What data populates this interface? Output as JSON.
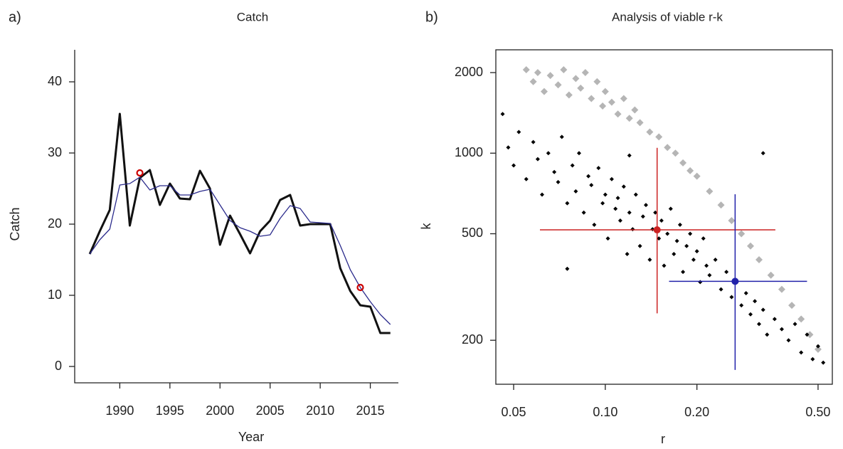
{
  "chart_data": [
    {
      "type": "line",
      "panel": "a)",
      "title": "Catch",
      "xlabel": "Year",
      "ylabel": "Catch",
      "xlim": [
        1985.5,
        2017.8
      ],
      "ylim": [
        -2.3,
        44.5
      ],
      "xticks": [
        1990,
        1995,
        2000,
        2005,
        2010,
        2015
      ],
      "yticks": [
        0,
        10,
        20,
        30,
        40
      ],
      "grid": false,
      "x": [
        1987,
        1988,
        1989,
        1990,
        1991,
        1992,
        1993,
        1994,
        1995,
        1996,
        1997,
        1998,
        1999,
        2000,
        2001,
        2002,
        2003,
        2004,
        2005,
        2006,
        2007,
        2008,
        2009,
        2010,
        2011,
        2012,
        2013,
        2014,
        2015,
        2016,
        2017
      ],
      "series": [
        {
          "color": "#111111",
          "width": 3,
          "values": [
            15.8,
            19,
            22,
            35.5,
            19.8,
            26.5,
            27.6,
            22.7,
            25.7,
            23.6,
            23.5,
            27.5,
            25,
            17.1,
            21.2,
            18.6,
            15.9,
            19,
            20.5,
            23.4,
            24.1,
            19.8,
            20,
            20,
            20,
            13.8,
            10.6,
            8.6,
            8.4,
            4.7,
            4.7
          ]
        },
        {
          "color": "#2b2b8c",
          "width": 1.3,
          "values": [
            15.8,
            17.8,
            19.3,
            25.5,
            25.7,
            26.6,
            24.8,
            25.4,
            25.4,
            24.1,
            24.1,
            24.6,
            24.9,
            22.7,
            20.5,
            19.5,
            19,
            18.3,
            18.5,
            20.8,
            22.6,
            22.2,
            20.3,
            20.2,
            20.1,
            17,
            13.6,
            11.1,
            9.1,
            7.3,
            5.9
          ]
        }
      ],
      "markers": {
        "color": "#cc0000",
        "x": [
          1992,
          2014
        ],
        "values": [
          27.2,
          11.1
        ]
      }
    },
    {
      "type": "scatter",
      "panel": "b)",
      "title": "Analysis of viable r-k",
      "xlabel": "r",
      "ylabel": "k",
      "xscale": "log",
      "yscale": "log",
      "xlim": [
        0.0437,
        0.557
      ],
      "ylim": [
        137,
        2433
      ],
      "xticks": [
        0.05,
        {
          "value": 0.1,
          "label": "0.10"
        },
        {
          "value": 0.2,
          "label": "0.20"
        },
        {
          "value": 0.5,
          "label": "0.50"
        }
      ],
      "yticks": [
        200,
        500,
        1000,
        2000
      ],
      "grid": false,
      "series": [
        {
          "color": "#b5b5b5",
          "size": 5,
          "x": [
            0.055,
            0.058,
            0.06,
            0.063,
            0.066,
            0.07,
            0.073,
            0.076,
            0.08,
            0.083,
            0.086,
            0.09,
            0.094,
            0.098,
            0.1,
            0.105,
            0.11,
            0.115,
            0.12,
            0.125,
            0.13,
            0.14,
            0.15,
            0.16,
            0.17,
            0.18,
            0.19,
            0.2,
            0.22,
            0.24,
            0.26,
            0.28,
            0.3,
            0.32,
            0.35,
            0.38,
            0.41,
            0.44,
            0.47,
            0.5
          ],
          "values": [
            2050,
            1850,
            2000,
            1700,
            1950,
            1800,
            2050,
            1650,
            1900,
            1750,
            2000,
            1600,
            1850,
            1500,
            1700,
            1550,
            1400,
            1600,
            1350,
            1450,
            1300,
            1200,
            1150,
            1050,
            1000,
            920,
            860,
            820,
            720,
            640,
            560,
            500,
            450,
            400,
            350,
            310,
            270,
            240,
            210,
            185
          ]
        },
        {
          "color": "#000000",
          "size": 3,
          "x": [
            0.046,
            0.048,
            0.05,
            0.052,
            0.055,
            0.058,
            0.06,
            0.062,
            0.065,
            0.068,
            0.07,
            0.072,
            0.075,
            0.078,
            0.08,
            0.082,
            0.085,
            0.088,
            0.09,
            0.092,
            0.095,
            0.098,
            0.1,
            0.102,
            0.105,
            0.108,
            0.11,
            0.112,
            0.115,
            0.118,
            0.12,
            0.123,
            0.126,
            0.13,
            0.133,
            0.136,
            0.14,
            0.143,
            0.146,
            0.15,
            0.153,
            0.156,
            0.16,
            0.164,
            0.168,
            0.172,
            0.176,
            0.18,
            0.185,
            0.19,
            0.195,
            0.2,
            0.205,
            0.21,
            0.215,
            0.22,
            0.23,
            0.24,
            0.25,
            0.26,
            0.27,
            0.28,
            0.29,
            0.3,
            0.31,
            0.32,
            0.33,
            0.34,
            0.36,
            0.38,
            0.4,
            0.42,
            0.44,
            0.46,
            0.48,
            0.5,
            0.52,
            0.075,
            0.12,
            0.33
          ],
          "values": [
            1400,
            1050,
            900,
            1200,
            800,
            1100,
            950,
            700,
            1000,
            850,
            780,
            1150,
            650,
            900,
            720,
            1000,
            600,
            820,
            760,
            540,
            880,
            650,
            700,
            480,
            800,
            620,
            680,
            560,
            750,
            420,
            600,
            520,
            700,
            450,
            580,
            640,
            400,
            520,
            600,
            480,
            560,
            380,
            500,
            620,
            420,
            470,
            540,
            360,
            450,
            500,
            400,
            430,
            330,
            480,
            380,
            350,
            400,
            310,
            360,
            290,
            330,
            270,
            300,
            250,
            280,
            230,
            260,
            210,
            240,
            220,
            200,
            230,
            180,
            210,
            170,
            190,
            165,
            370,
            980,
            1000
          ]
        }
      ],
      "estimates": [
        {
          "color": "#cc2222",
          "r": 0.148,
          "k": 517,
          "r_range": [
            0.061,
            0.362
          ],
          "k_range": [
            252,
            1047
          ]
        },
        {
          "color": "#2222aa",
          "r": 0.267,
          "k": 332,
          "r_range": [
            0.162,
            0.46
          ],
          "k_range": [
            155,
            702
          ]
        }
      ]
    }
  ]
}
